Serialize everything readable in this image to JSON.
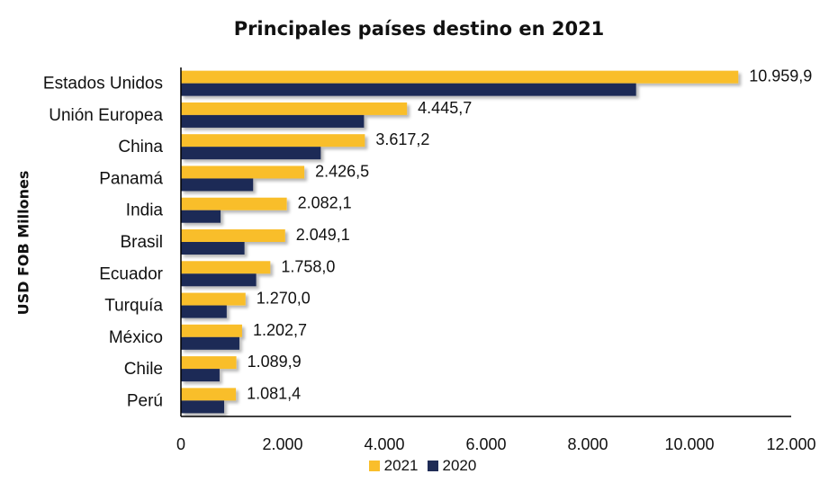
{
  "chart_data": {
    "type": "bar",
    "orientation": "horizontal",
    "title": "Principales países destino en 2021",
    "ylabel": "USD FOB Millones",
    "xlabel": "",
    "xlim": [
      0,
      12000
    ],
    "xticks": [
      0,
      2000,
      4000,
      6000,
      8000,
      10000,
      12000
    ],
    "xtick_labels": [
      "0",
      "2.000",
      "4.000",
      "6.000",
      "8.000",
      "10.000",
      "12.000"
    ],
    "categories": [
      "Estados Unidos",
      "Unión Europea",
      "China",
      "Panamá",
      "India",
      "Brasil",
      "Ecuador",
      "Turquía",
      "México",
      "Chile",
      "Perú"
    ],
    "series": [
      {
        "name": "2021",
        "color": "#F9BE2B",
        "values": [
          10959.9,
          4445.7,
          3617.2,
          2426.5,
          2082.1,
          2049.1,
          1758.0,
          1270.0,
          1202.7,
          1089.9,
          1081.4
        ],
        "data_labels": [
          "10.959,9",
          "4.445,7",
          "3.617,2",
          "2.426,5",
          "2.082,1",
          "2.049,1",
          "1.758,0",
          "1.270,0",
          "1.202,7",
          "1.089,9",
          "1.081,4"
        ]
      },
      {
        "name": "2020",
        "color": "#1F2C56",
        "values": [
          8950,
          3600,
          2750,
          1420,
          780,
          1250,
          1480,
          900,
          1150,
          760,
          850
        ]
      }
    ],
    "grid": false,
    "legend_position": "bottom"
  }
}
